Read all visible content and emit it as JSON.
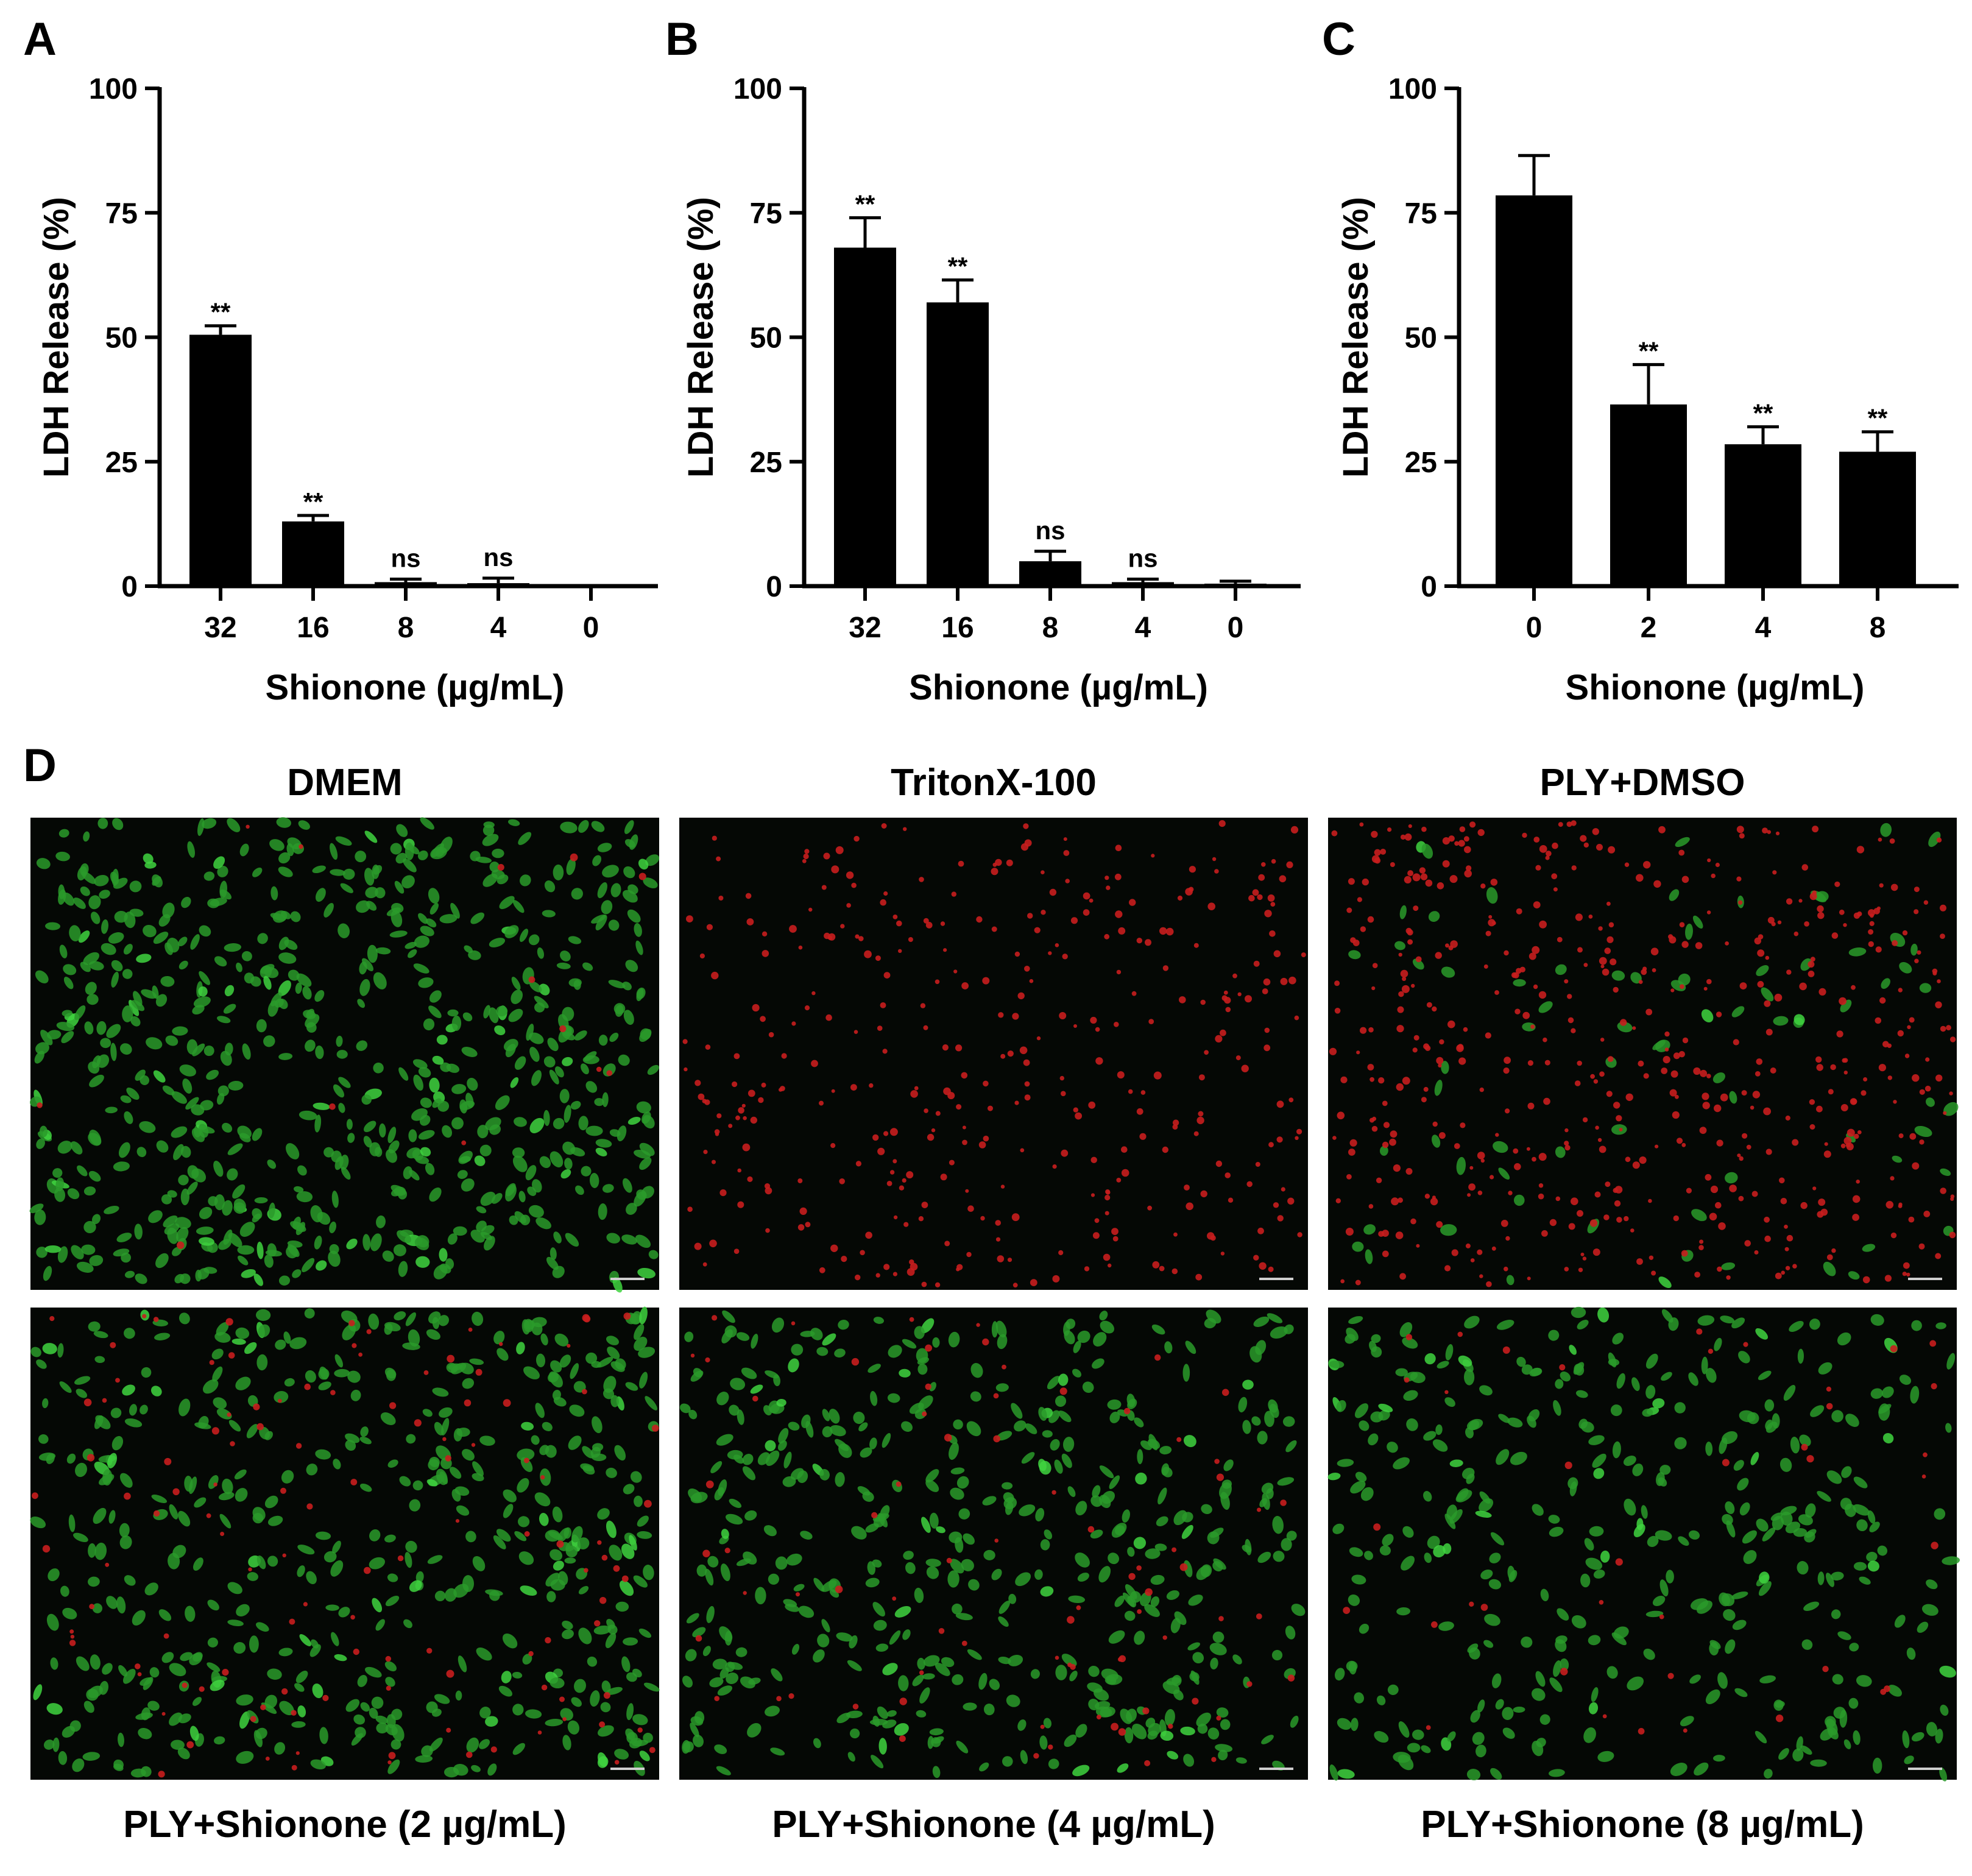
{
  "panels": {
    "A": "A",
    "B": "B",
    "C": "C",
    "D": "D"
  },
  "chart_data": [
    {
      "panel": "A",
      "type": "bar",
      "categories": [
        "32",
        "16",
        "8",
        "4",
        "0"
      ],
      "values": [
        50.5,
        13,
        0.8,
        0.6,
        0
      ],
      "errors": [
        1.8,
        1.2,
        0.6,
        1.0,
        0
      ],
      "annotations": [
        "**",
        "**",
        "ns",
        "ns",
        ""
      ],
      "xlabel": "Shionone (µg/mL)",
      "ylabel": "LDH Release (%)",
      "ylim": [
        0,
        100
      ],
      "yticks": [
        "0",
        "25",
        "50",
        "75",
        "100"
      ]
    },
    {
      "panel": "B",
      "type": "bar",
      "categories": [
        "32",
        "16",
        "8",
        "4",
        "0"
      ],
      "values": [
        68,
        57,
        5,
        0.8,
        0.5
      ],
      "errors": [
        6,
        4.5,
        2,
        0.6,
        0.5
      ],
      "annotations": [
        "**",
        "**",
        "ns",
        "ns",
        ""
      ],
      "xlabel": "Shionone (µg/mL)",
      "ylabel": "LDH Release (%)",
      "ylim": [
        0,
        100
      ],
      "yticks": [
        "0",
        "25",
        "50",
        "75",
        "100"
      ]
    },
    {
      "panel": "C",
      "type": "bar",
      "categories": [
        "0",
        "2",
        "4",
        "8"
      ],
      "values": [
        78.5,
        36.5,
        28.5,
        27
      ],
      "errors": [
        8,
        8,
        3.5,
        4
      ],
      "annotations": [
        "",
        "**",
        "**",
        "**"
      ],
      "xlabel": "Shionone (µg/mL)",
      "ylabel": "LDH Release (%)",
      "ylim": [
        0,
        100
      ],
      "yticks": [
        "0",
        "25",
        "50",
        "75",
        "100"
      ]
    }
  ],
  "images": [
    {
      "id": "dmem",
      "title": "DMEM",
      "position": "top",
      "green": 1.0,
      "red": 0.02
    },
    {
      "id": "triton",
      "title": "TritonX-100",
      "position": "top",
      "green": 0.0,
      "red": 0.55
    },
    {
      "id": "ply-dmso",
      "title": "PLY+DMSO",
      "position": "top",
      "green": 0.12,
      "red": 0.8
    },
    {
      "id": "ply-s2",
      "title": "PLY+Shionone (2 µg/mL)",
      "position": "bottom",
      "green": 0.75,
      "red": 0.18
    },
    {
      "id": "ply-s4",
      "title": "PLY+Shionone (4 µg/mL)",
      "position": "bottom",
      "green": 0.7,
      "red": 0.12
    },
    {
      "id": "ply-s8",
      "title": "PLY+Shionone (8 µg/mL)",
      "position": "bottom",
      "green": 0.55,
      "red": 0.06
    }
  ],
  "colors": {
    "bar": "#000000",
    "green_cell": "#2a9a2a",
    "red_cell": "#c81e1e",
    "image_bg": "#050805"
  }
}
